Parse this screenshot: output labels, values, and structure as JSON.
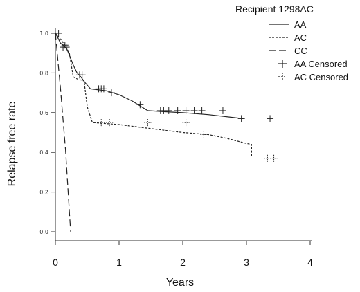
{
  "chart_data": {
    "type": "line",
    "subtype": "kaplan-meier",
    "legend_title": "Recipient 1298AC",
    "xlabel": "Years",
    "ylabel": "Relapse free rate",
    "xlim": [
      0,
      4
    ],
    "ylim": [
      0.0,
      1.0
    ],
    "x_ticks": [
      "0",
      "1",
      "2",
      "3",
      "4"
    ],
    "y_ticks": [
      "0.0",
      "0.2",
      "0.4",
      "0.6",
      "0.8",
      "1.0"
    ],
    "grid": false,
    "legend_position": "top-right",
    "series": [
      {
        "name": "AA",
        "style": "solid",
        "x": [
          0.0,
          0.05,
          0.08,
          0.12,
          0.18,
          0.22,
          0.28,
          0.34,
          0.4,
          0.47,
          0.55,
          0.8,
          1.0,
          1.2,
          1.45,
          1.7,
          2.0,
          2.4,
          2.95
        ],
        "y": [
          1.0,
          0.97,
          0.95,
          0.94,
          0.92,
          0.89,
          0.84,
          0.8,
          0.78,
          0.75,
          0.72,
          0.71,
          0.69,
          0.66,
          0.61,
          0.605,
          0.6,
          0.59,
          0.57
        ]
      },
      {
        "name": "AC",
        "style": "dotted",
        "x": [
          0.0,
          0.08,
          0.15,
          0.22,
          0.28,
          0.34,
          0.45,
          0.5,
          0.58,
          1.0,
          1.5,
          2.0,
          2.4,
          2.7,
          3.0,
          3.08,
          3.08
        ],
        "y": [
          1.0,
          0.97,
          0.94,
          0.9,
          0.78,
          0.77,
          0.76,
          0.63,
          0.55,
          0.54,
          0.52,
          0.5,
          0.49,
          0.47,
          0.445,
          0.44,
          0.38
        ]
      },
      {
        "name": "CC",
        "style": "dashed",
        "x": [
          0.0,
          0.08,
          0.16,
          0.22,
          0.24
        ],
        "y": [
          1.0,
          0.72,
          0.41,
          0.1,
          0.0
        ]
      },
      {
        "name": "AA Censored",
        "style": "marker-plus",
        "x": [
          0.05,
          0.12,
          0.15,
          0.17,
          0.38,
          0.42,
          0.68,
          0.72,
          0.76,
          0.88,
          1.33,
          1.65,
          1.7,
          1.78,
          1.92,
          2.05,
          2.18,
          2.3,
          2.63,
          2.92,
          3.37
        ],
        "y": [
          1.0,
          0.93,
          0.94,
          0.93,
          0.79,
          0.79,
          0.72,
          0.72,
          0.72,
          0.7,
          0.64,
          0.61,
          0.61,
          0.61,
          0.61,
          0.61,
          0.61,
          0.61,
          0.61,
          0.57,
          0.57
        ]
      },
      {
        "name": "AC Censored",
        "style": "marker-dotted-plus",
        "x": [
          0.72,
          0.85,
          1.45,
          2.05,
          2.33,
          3.33,
          3.43
        ],
        "y": [
          0.55,
          0.55,
          0.55,
          0.55,
          0.49,
          0.37,
          0.37
        ]
      }
    ]
  }
}
